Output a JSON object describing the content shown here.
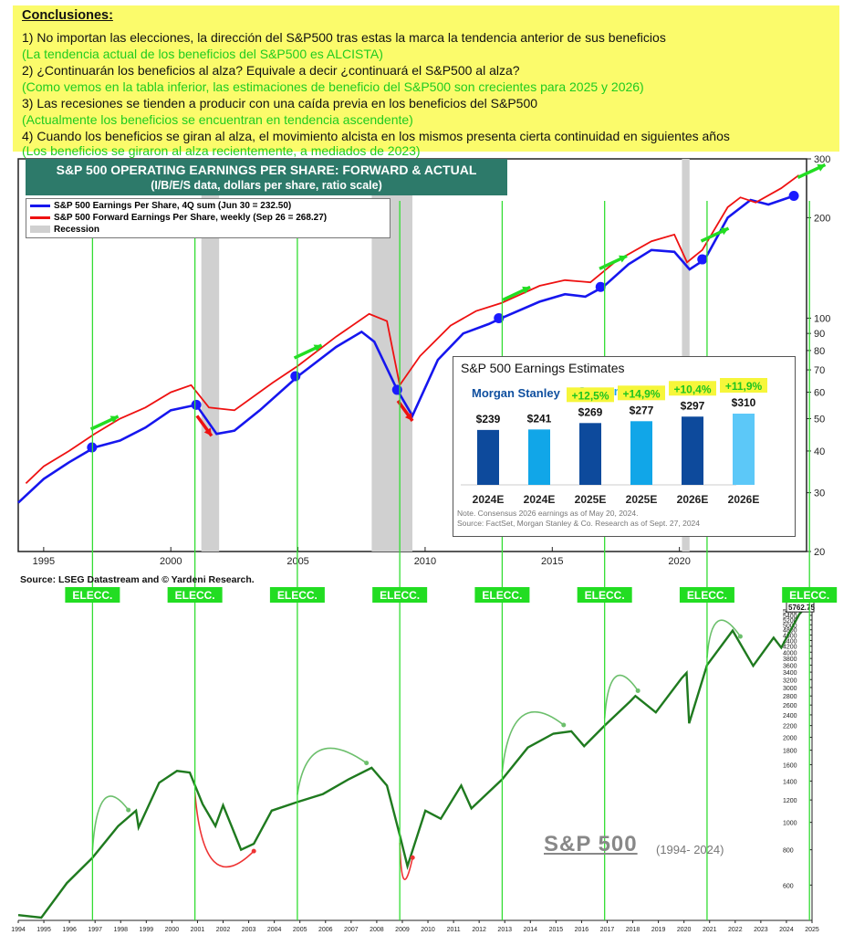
{
  "conclusions": {
    "heading": "Conclusiones:",
    "lines": [
      {
        "text": "1) No importan las elecciones, la dirección del S&P500 tras estas la marca la tendencia anterior de sus beneficios",
        "color": "black"
      },
      {
        "text": "(La tendencia actual de los beneficios del S&P500 es ALCISTA)",
        "color": "green"
      },
      {
        "text": "2) ¿Continuarán los beneficios al alza? Equivale a decir ¿continuará el S&P500 al alza?",
        "color": "black"
      },
      {
        "text": "(Como vemos en la tabla inferior, las estimaciones de beneficio del S&P500 son crecientes para 2025 y 2026)",
        "color": "green"
      },
      {
        "text": "3) Las recesiones se tienden a producir con una caída previa en los beneficios del S&P500",
        "color": "black"
      },
      {
        "text": "(Actualmente los beneficios se encuentran en tendencia ascendente)",
        "color": "green"
      },
      {
        "text": "4) Cuando los beneficios se giran al alza, el movimiento alcista en los mismos presenta cierta continuidad en siguientes años",
        "color": "black"
      },
      {
        "text": "(Los beneficios se giraron al alza recientemente, a mediados de 2023)",
        "color": "green"
      }
    ]
  },
  "chart_data": [
    {
      "type": "line",
      "title": "S&P 500 OPERATING EARNINGS PER SHARE: FORWARD & ACTUAL",
      "subtitle": "(I/B/E/S data, dollars per share, ratio scale)",
      "yscale": "log",
      "ylim": [
        20,
        300
      ],
      "yticks": [
        20,
        30,
        40,
        50,
        60,
        70,
        80,
        90,
        100,
        200,
        300
      ],
      "xticks": [
        1995,
        2000,
        2005,
        2010,
        2015,
        2020
      ],
      "xlim": [
        1994,
        2025
      ],
      "legend": [
        "S&P 500 Earnings Per Share, 4Q sum (Jun 30 = 232.50)",
        "S&P 500 Forward Earnings Per Share, weekly (Sep 26 = 268.27)",
        "Recession"
      ],
      "recessions": [
        [
          2001.2,
          2001.9
        ],
        [
          2007.9,
          2009.5
        ],
        [
          2020.1,
          2020.4
        ]
      ],
      "source": "Source: LSEG Datastream and © Yardeni Research.",
      "colors": {
        "actual": "#1616ee",
        "forward": "#ee1111",
        "recession": "#d0d0d0"
      },
      "series": [
        {
          "name": "S&P 500 Earnings Per Share, 4Q sum (Jun 30 = 232.50)",
          "points": [
            [
              1994.0,
              28
            ],
            [
              1995.0,
              33
            ],
            [
              1996.0,
              37
            ],
            [
              1997.0,
              41
            ],
            [
              1998.0,
              43
            ],
            [
              1999.0,
              47
            ],
            [
              2000.0,
              53
            ],
            [
              2001.0,
              55
            ],
            [
              2001.8,
              45
            ],
            [
              2002.5,
              46
            ],
            [
              2003.5,
              53
            ],
            [
              2005.0,
              67
            ],
            [
              2006.5,
              82
            ],
            [
              2007.5,
              91
            ],
            [
              2008.0,
              85
            ],
            [
              2008.9,
              61
            ],
            [
              2009.5,
              51
            ],
            [
              2010.5,
              75
            ],
            [
              2011.5,
              90
            ],
            [
              2012.5,
              96
            ],
            [
              2013.0,
              100
            ],
            [
              2014.5,
              112
            ],
            [
              2015.5,
              118
            ],
            [
              2016.3,
              116
            ],
            [
              2017.0,
              124
            ],
            [
              2018.0,
              145
            ],
            [
              2018.9,
              160
            ],
            [
              2019.8,
              158
            ],
            [
              2020.4,
              140
            ],
            [
              2021.0,
              150
            ],
            [
              2021.9,
              200
            ],
            [
              2022.8,
              226
            ],
            [
              2023.5,
              219
            ],
            [
              2024.5,
              232.5
            ]
          ]
        },
        {
          "name": "S&P 500 Forward Earnings Per Share, weekly (Sep 26 = 268.27)",
          "points": [
            [
              1994.3,
              32
            ],
            [
              1995.0,
              36
            ],
            [
              1996.0,
              40
            ],
            [
              1997.0,
              45
            ],
            [
              1998.0,
              50
            ],
            [
              1999.0,
              54
            ],
            [
              2000.0,
              60
            ],
            [
              2000.8,
              63
            ],
            [
              2001.5,
              54
            ],
            [
              2002.5,
              53
            ],
            [
              2004.0,
              64
            ],
            [
              2005.0,
              72
            ],
            [
              2006.5,
              88
            ],
            [
              2007.8,
              103
            ],
            [
              2008.5,
              98
            ],
            [
              2009.0,
              63
            ],
            [
              2009.8,
              77
            ],
            [
              2011.0,
              95
            ],
            [
              2012.0,
              105
            ],
            [
              2013.0,
              111
            ],
            [
              2014.5,
              125
            ],
            [
              2015.5,
              130
            ],
            [
              2016.5,
              128
            ],
            [
              2017.5,
              148
            ],
            [
              2018.9,
              170
            ],
            [
              2019.8,
              178
            ],
            [
              2020.3,
              147
            ],
            [
              2020.9,
              160
            ],
            [
              2021.9,
              215
            ],
            [
              2022.4,
              230
            ],
            [
              2023.0,
              222
            ],
            [
              2024.0,
              245
            ],
            [
              2024.7,
              268.27
            ]
          ]
        }
      ],
      "markers": [
        [
          1996.9,
          41
        ],
        [
          2001.0,
          55
        ],
        [
          2004.9,
          67
        ],
        [
          2008.9,
          61
        ],
        [
          2012.9,
          100
        ],
        [
          2016.9,
          124
        ],
        [
          2020.9,
          150
        ],
        [
          2024.5,
          232.5
        ]
      ],
      "arrows": [
        {
          "year": 1997.0,
          "dir": "up",
          "color": "green"
        },
        {
          "year": 2001.1,
          "dir": "down",
          "color": "red"
        },
        {
          "year": 2005.0,
          "dir": "up",
          "color": "green"
        },
        {
          "year": 2009.0,
          "dir": "down",
          "color": "red"
        },
        {
          "year": 2013.2,
          "dir": "up",
          "color": "green"
        },
        {
          "year": 2017.0,
          "dir": "up",
          "color": "green"
        },
        {
          "year": 2021.0,
          "dir": "up",
          "color": "green"
        },
        {
          "year": 2024.8,
          "dir": "up",
          "color": "green"
        }
      ]
    },
    {
      "type": "bar",
      "title": "S&P 500 Earnings Estimates",
      "groups": [
        "Morgan Stanley",
        "Consensus"
      ],
      "categories": [
        "2024E",
        "2024E",
        "2025E",
        "2025E",
        "2026E",
        "2026E"
      ],
      "values": [
        239,
        241,
        269,
        277,
        297,
        310
      ],
      "value_labels": [
        "$239",
        "$241",
        "$269",
        "$277",
        "$297",
        "$310"
      ],
      "growth_labels": [
        "",
        "",
        "+12,5%",
        "+14,9%",
        "+10,4%",
        "+11,9%"
      ],
      "bar_colors": [
        "#0d4a9c",
        "#11a6e8",
        "#0d4a9c",
        "#11a6e8",
        "#0d4a9c",
        "#5cc8f8"
      ],
      "notes": [
        "Note. Consensus 2026 earnings as of May 20, 2024.",
        "Source: FactSet, Morgan Stanley & Co. Research as of Sept. 27, 2024"
      ]
    },
    {
      "type": "line",
      "title": "S&P 500",
      "subtitle": "(1994- 2024)",
      "yscale": "log",
      "yticks": [
        600,
        800,
        1000,
        1200,
        1400,
        1600,
        1800,
        2000,
        2200,
        2400,
        2600,
        2800,
        3000,
        3200,
        3400,
        3600,
        3800,
        4000,
        4200,
        4400,
        4600,
        4800,
        5000,
        5200,
        5400,
        5600
      ],
      "last_value_label": "5762.75",
      "xticks": [
        1994,
        1995,
        1996,
        1997,
        1998,
        1999,
        2000,
        2001,
        2002,
        2003,
        2004,
        2005,
        2006,
        2007,
        2008,
        2009,
        2010,
        2011,
        2012,
        2013,
        2014,
        2015,
        2016,
        2017,
        2018,
        2019,
        2020,
        2021,
        2022,
        2023,
        2024,
        2025
      ],
      "election_label": "ELECC.",
      "elections": [
        1996.9,
        2000.9,
        2004.9,
        2008.9,
        2012.9,
        2016.9,
        2020.9,
        2024.9
      ],
      "series": [
        {
          "name": "S&P 500",
          "points": [
            [
              1994.0,
              470
            ],
            [
              1994.9,
              460
            ],
            [
              1995.9,
              610
            ],
            [
              1996.9,
              750
            ],
            [
              1997.9,
              970
            ],
            [
              1998.6,
              1100
            ],
            [
              1998.7,
              960
            ],
            [
              1999.5,
              1380
            ],
            [
              2000.2,
              1520
            ],
            [
              2000.7,
              1500
            ],
            [
              2001.2,
              1160
            ],
            [
              2001.7,
              970
            ],
            [
              2002.0,
              1150
            ],
            [
              2002.7,
              800
            ],
            [
              2003.2,
              840
            ],
            [
              2003.9,
              1100
            ],
            [
              2004.9,
              1180
            ],
            [
              2005.9,
              1260
            ],
            [
              2006.9,
              1420
            ],
            [
              2007.8,
              1560
            ],
            [
              2008.4,
              1350
            ],
            [
              2008.9,
              900
            ],
            [
              2009.2,
              700
            ],
            [
              2009.9,
              1100
            ],
            [
              2010.5,
              1030
            ],
            [
              2011.3,
              1350
            ],
            [
              2011.7,
              1120
            ],
            [
              2012.9,
              1420
            ],
            [
              2013.9,
              1840
            ],
            [
              2014.9,
              2060
            ],
            [
              2015.6,
              2100
            ],
            [
              2016.1,
              1860
            ],
            [
              2016.9,
              2200
            ],
            [
              2017.9,
              2680
            ],
            [
              2018.1,
              2800
            ],
            [
              2018.9,
              2450
            ],
            [
              2019.9,
              3230
            ],
            [
              2020.1,
              3380
            ],
            [
              2020.2,
              2240
            ],
            [
              2020.9,
              3600
            ],
            [
              2021.9,
              4770
            ],
            [
              2022.7,
              3580
            ],
            [
              2023.5,
              4500
            ],
            [
              2023.8,
              4150
            ],
            [
              2024.5,
              5450
            ],
            [
              2024.75,
              5762.75
            ]
          ]
        }
      ],
      "swings": [
        {
          "from": 1996.9,
          "to": 1998.3,
          "color": "green"
        },
        {
          "from": 2000.9,
          "to": 2003.2,
          "color": "red"
        },
        {
          "from": 2004.9,
          "to": 2007.6,
          "color": "green"
        },
        {
          "from": 2008.9,
          "to": 2009.4,
          "color": "red"
        },
        {
          "from": 2012.9,
          "to": 2015.3,
          "color": "green"
        },
        {
          "from": 2016.9,
          "to": 2018.2,
          "color": "green"
        },
        {
          "from": 2020.9,
          "to": 2022.2,
          "color": "green"
        }
      ]
    }
  ]
}
